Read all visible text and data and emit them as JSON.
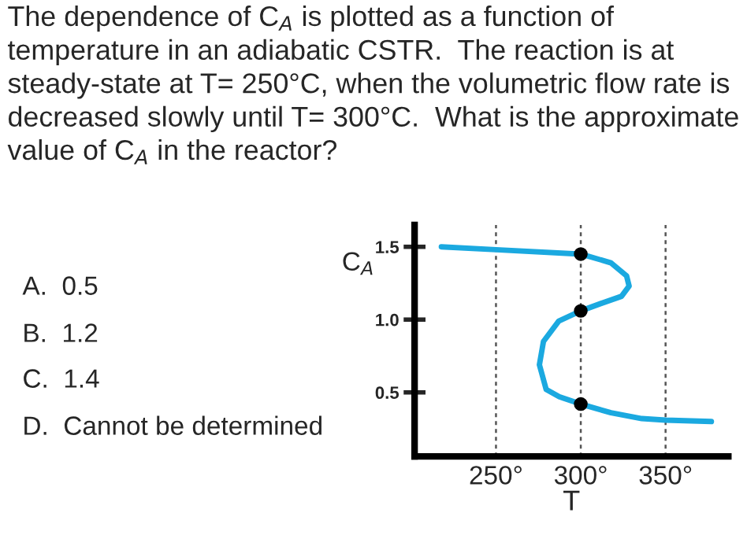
{
  "chart_data": {
    "type": "line",
    "title": "The dependence of C$_{A}$ is plotted as a function of temperature in an adiabatic CSTR.  The reaction is at steady-state at T= 250°C, when the volumetric flow rate is decreased slowly until T= 300°C.  What is the approximate value of C$_{A}$ in the reactor?",
    "xlabel": "T",
    "ylabel": "C$_{A}$",
    "annotations": [
      "A.  0.5",
      "B.  1.2",
      "C.  1.4",
      "D.  Cannot be determined"
    ],
    "series": [
      {
        "color": "#1ba9e0",
        "x": [
          217.8,
          250,
          300,
          317.8,
          327,
          328.5,
          324,
          311.7,
          300,
          287,
          278,
          275.6,
          279.6,
          287.3,
          300,
          317.8,
          336,
          350,
          377
        ],
        "values": [
          1.5,
          1.48,
          1.45,
          1.39,
          1.3,
          1.23,
          1.16,
          1.11,
          1.06,
          0.99,
          0.85,
          0.69,
          0.52,
          0.47,
          0.42,
          0.36,
          0.32,
          0.31,
          0.3
        ]
      },
      {
        "type": "scatter",
        "color": "#000000",
        "marker": "circle",
        "x": [
          300,
          300,
          300
        ],
        "values": [
          1.45,
          1.06,
          0.42
        ]
      }
    ],
    "xlim": [
      202,
      387
    ],
    "ylim": [
      0.06,
      1.65
    ],
    "xticks": [
      {
        "value": 250,
        "label": "250°"
      },
      {
        "value": 300,
        "label": "300°"
      },
      {
        "value": 350,
        "label": "350°"
      }
    ],
    "yticks": [
      0.5,
      {
        "value": 1.0,
        "label": "1.0"
      },
      1.5
    ],
    "grid": "x",
    "line_style": "solid"
  }
}
